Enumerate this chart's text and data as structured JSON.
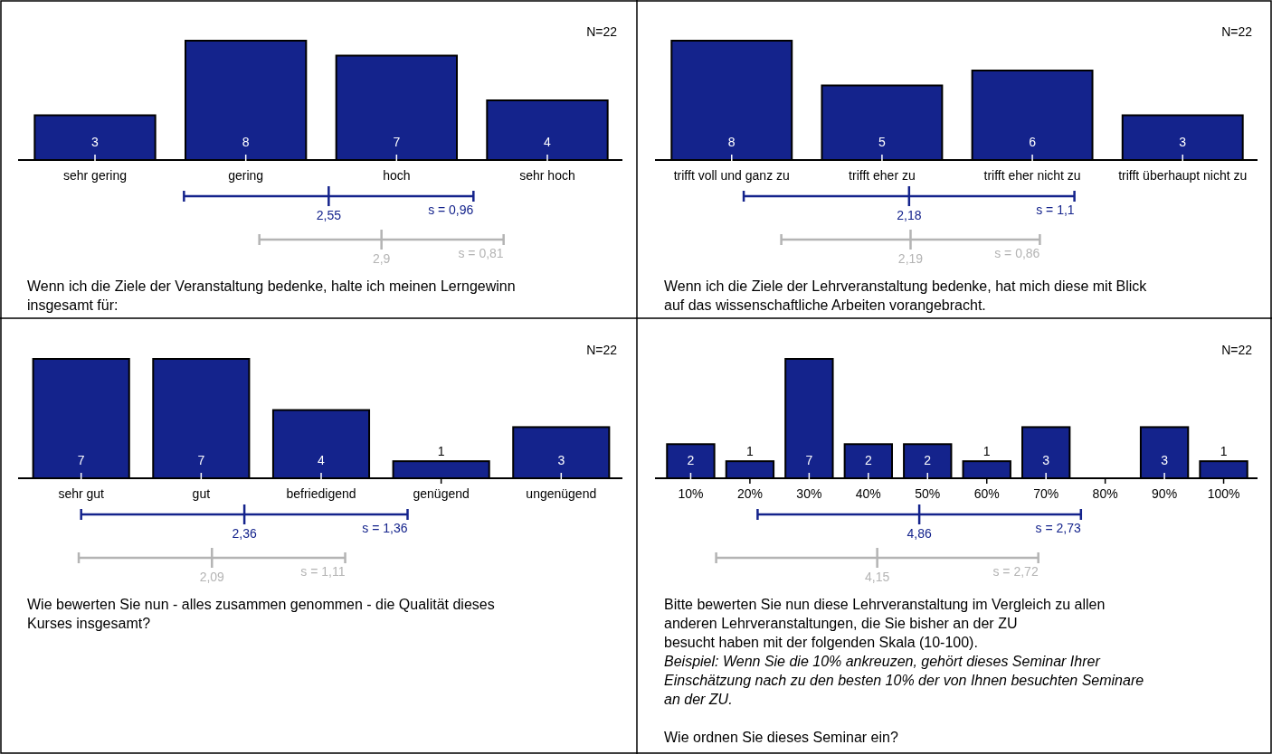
{
  "chart_data": [
    {
      "type": "bar",
      "title": "Wenn ich die Ziele der Veranstaltung bedenke, halte ich meinen Lerngewinn\ninsgesamt für:",
      "categories": [
        "sehr gering",
        "gering",
        "hoch",
        "sehr hoch"
      ],
      "values": [
        3,
        8,
        7,
        4
      ],
      "color": "#14238c",
      "data_labels": true,
      "annotations": [
        "N=22",
        "2,55",
        "s = 0,96",
        "2,9",
        "s = 0,81"
      ]
    },
    {
      "type": "bar",
      "title": "Wenn ich die Ziele der Lehrveranstaltung bedenke, hat mich diese mit Blick\nauf das wissenschaftliche Arbeiten vorangebracht.",
      "categories": [
        "trifft voll und ganz zu",
        "trifft eher zu",
        "trifft eher nicht zu",
        "trifft überhaupt nicht zu"
      ],
      "values": [
        8,
        5,
        6,
        3
      ],
      "color": "#14238c",
      "data_labels": true,
      "annotations": [
        "N=22",
        "2,18",
        "s = 1,1",
        "2,19",
        "s = 0,86"
      ]
    },
    {
      "type": "bar",
      "title": "Wie bewerten Sie nun - alles zusammen genommen - die Qualität dieses\nKurses insgesamt?",
      "categories": [
        "sehr gut",
        "gut",
        "befriedigend",
        "genügend",
        "ungenügend"
      ],
      "values": [
        7,
        7,
        4,
        1,
        3
      ],
      "color": "#14238c",
      "data_labels": true,
      "annotations": [
        "N=22",
        "2,36",
        "s = 1,36",
        "2,09",
        "s = 1,11"
      ]
    },
    {
      "type": "bar",
      "title": "Bitte bewerten Sie nun diese Lehrveranstaltung im Vergleich zu allen\nanderen  Lehrveranstaltungen, die Sie bisher an der ZU\nbesucht haben mit der folgenden Skala (10-100).",
      "categories": [
        "10%",
        "20%",
        "30%",
        "40%",
        "50%",
        "60%",
        "70%",
        "80%",
        "90%",
        "100%"
      ],
      "values": [
        2,
        1,
        7,
        2,
        2,
        1,
        3,
        0,
        3,
        1
      ],
      "value_labels": [
        "2",
        "1",
        "7",
        "2",
        "2",
        "1",
        "3",
        null,
        "3",
        "1"
      ],
      "color": "#14238c",
      "annotations": [
        "N=22",
        "4,86",
        "s = 2,73",
        "4,15",
        "s = 2,72",
        "Beispiel: Wenn Sie die 10% ankreuzen, gehört dieses Seminar Ihrer\nEinschätzung nach zu den besten 10% der von Ihnen besuchten Seminare\nan der ZU.",
        "Wie ordnen Sie dieses Seminar ein?"
      ]
    }
  ]
}
